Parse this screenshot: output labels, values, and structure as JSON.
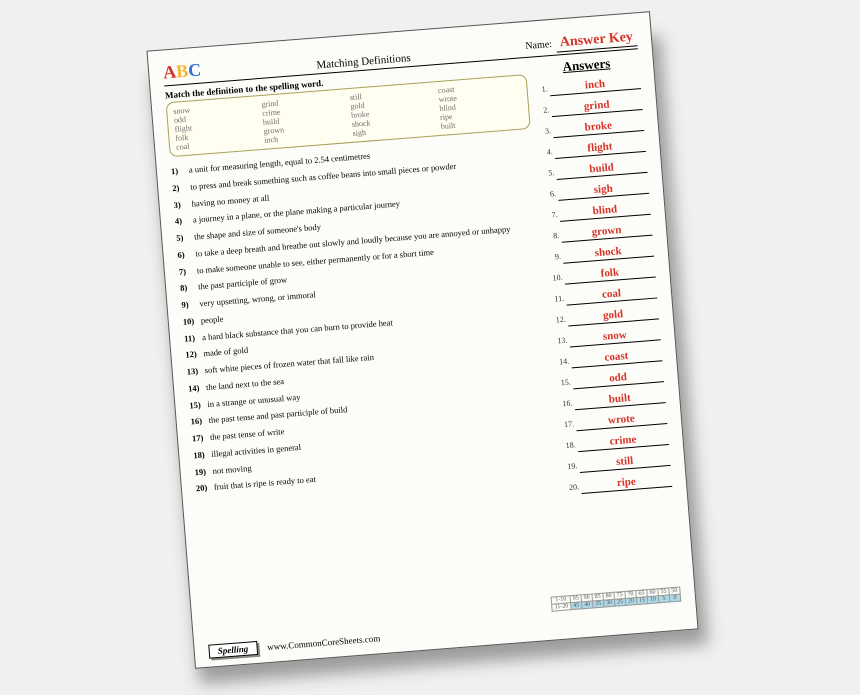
{
  "header": {
    "logo": {
      "a": "A",
      "b": "B",
      "c": "C"
    },
    "title": "Matching Definitions",
    "name_label": "Name:",
    "answer_key": "Answer Key"
  },
  "instruction": "Match the definition to the spelling word.",
  "wordbox": [
    "snow",
    "grind",
    "still",
    "coast",
    "odd",
    "crime",
    "gold",
    "wrote",
    "flight",
    "build",
    "broke",
    "blind",
    "folk",
    "grown",
    "shock",
    "ripe",
    "coal",
    "inch",
    "sigh",
    "built"
  ],
  "definitions": [
    {
      "n": "1)",
      "t": "a unit for measuring length, equal to 2.54 centimetres"
    },
    {
      "n": "2)",
      "t": "to press and break something such as coffee beans into small pieces or powder"
    },
    {
      "n": "3)",
      "t": "having no money at all"
    },
    {
      "n": "4)",
      "t": "a journey in a plane, or the plane making a particular journey"
    },
    {
      "n": "5)",
      "t": "the shape and size of someone's body"
    },
    {
      "n": "6)",
      "t": "to take a deep breath and breathe out slowly and loudly because you are annoyed or unhappy"
    },
    {
      "n": "7)",
      "t": "to make someone unable to see, either permanently or for a short time"
    },
    {
      "n": "8)",
      "t": "the past participle of grow"
    },
    {
      "n": "9)",
      "t": "very upsetting, wrong, or immoral"
    },
    {
      "n": "10)",
      "t": "people"
    },
    {
      "n": "11)",
      "t": "a hard black substance that you can burn to provide heat"
    },
    {
      "n": "12)",
      "t": "made of gold"
    },
    {
      "n": "13)",
      "t": "soft white pieces of frozen water that fall like rain"
    },
    {
      "n": "14)",
      "t": "the land next to the sea"
    },
    {
      "n": "15)",
      "t": "in a strange or unusual way"
    },
    {
      "n": "16)",
      "t": "the past tense and past participle of build"
    },
    {
      "n": "17)",
      "t": "the past tense of write"
    },
    {
      "n": "18)",
      "t": "illegal activities in general"
    },
    {
      "n": "19)",
      "t": "not moving"
    },
    {
      "n": "20)",
      "t": "fruit that is ripe is ready to eat"
    }
  ],
  "answers_header": "Answers",
  "answers": [
    {
      "n": "1.",
      "w": "inch"
    },
    {
      "n": "2.",
      "w": "grind"
    },
    {
      "n": "3.",
      "w": "broke"
    },
    {
      "n": "4.",
      "w": "flight"
    },
    {
      "n": "5.",
      "w": "build"
    },
    {
      "n": "6.",
      "w": "sigh"
    },
    {
      "n": "7.",
      "w": "blind"
    },
    {
      "n": "8.",
      "w": "grown"
    },
    {
      "n": "9.",
      "w": "shock"
    },
    {
      "n": "10.",
      "w": "folk"
    },
    {
      "n": "11.",
      "w": "coal"
    },
    {
      "n": "12.",
      "w": "gold"
    },
    {
      "n": "13.",
      "w": "snow"
    },
    {
      "n": "14.",
      "w": "coast"
    },
    {
      "n": "15.",
      "w": "odd"
    },
    {
      "n": "16.",
      "w": "built"
    },
    {
      "n": "17.",
      "w": "wrote"
    },
    {
      "n": "18.",
      "w": "crime"
    },
    {
      "n": "19.",
      "w": "still"
    },
    {
      "n": "20.",
      "w": "ripe"
    }
  ],
  "score": {
    "row1_label": "1-10",
    "row2_label": "11-20",
    "row1": [
      "95",
      "90",
      "85",
      "80",
      "75",
      "70",
      "65",
      "60",
      "55",
      "50"
    ],
    "row2": [
      "45",
      "40",
      "35",
      "30",
      "25",
      "20",
      "15",
      "10",
      "5",
      "0"
    ]
  },
  "footer": {
    "tag": "Spelling",
    "url": "www.CommonCoreSheets.com"
  }
}
